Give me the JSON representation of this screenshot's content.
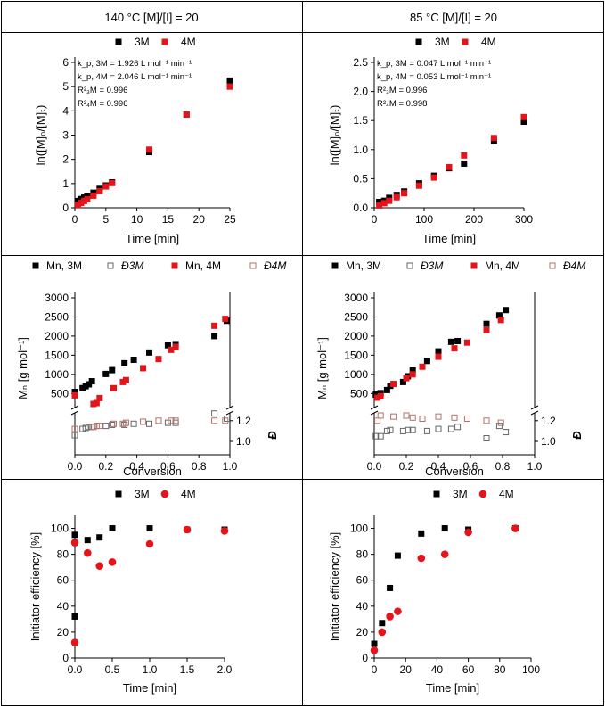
{
  "headers": [
    "140 °C [M]/[I] = 20",
    "85 °C [M]/[I] = 20"
  ],
  "colors": {
    "s3M": "#000000",
    "s4M": "#e3151a",
    "disp4M": "#b0706a",
    "disp3M": "#666666"
  },
  "chart_data": [
    {
      "id": "kin140",
      "type": "scatter",
      "xlabel": "Time [min]",
      "ylabel": "ln([M]₀/[M]ₜ)",
      "xlim": [
        0,
        25
      ],
      "xticks": [
        0,
        5,
        10,
        15,
        20,
        25
      ],
      "ylim": [
        0,
        6
      ],
      "yticks": [
        0,
        1,
        2,
        3,
        4,
        5,
        6
      ],
      "legend": [
        {
          "name": "3M"
        },
        {
          "name": "4M"
        }
      ],
      "annotations": [
        "k_p, 3M = 1.926 L mol⁻¹ min⁻¹",
        "k_p, 4M = 2.046 L mol⁻¹ min⁻¹",
        "R²₃M = 0.996",
        "R²₄M = 0.996"
      ],
      "series": [
        {
          "name": "3M",
          "x": [
            0.5,
            1,
            1.5,
            2,
            3,
            4,
            5,
            6,
            12,
            18,
            25
          ],
          "y": [
            0.28,
            0.36,
            0.42,
            0.47,
            0.62,
            0.78,
            0.92,
            1.05,
            2.3,
            3.85,
            5.25
          ]
        },
        {
          "name": "4M",
          "x": [
            0.5,
            1,
            1.5,
            2,
            3,
            4,
            5,
            6,
            12,
            18,
            25
          ],
          "y": [
            0.12,
            0.2,
            0.28,
            0.35,
            0.5,
            0.68,
            0.88,
            1.02,
            2.4,
            3.85,
            5.0
          ]
        }
      ]
    },
    {
      "id": "kin85",
      "type": "scatter",
      "xlabel": "Time [min]",
      "ylabel": "ln([M]₀/[M]ₜ)",
      "xlim": [
        0,
        300
      ],
      "xticks": [
        0,
        100,
        200,
        300
      ],
      "ylim": [
        0,
        2.5
      ],
      "yticks": [
        0.0,
        0.5,
        1.0,
        1.5,
        2.0,
        2.5
      ],
      "legend": [
        {
          "name": "3M"
        },
        {
          "name": "4M"
        }
      ],
      "annotations": [
        "k_p, 3M = 0.047 L mol⁻¹ min⁻¹",
        "k_p, 4M = 0.053 L mol⁻¹ min⁻¹",
        "R²₃M = 0.996",
        "R²₄M = 0.998"
      ],
      "series": [
        {
          "name": "3M",
          "x": [
            10,
            20,
            30,
            45,
            60,
            90,
            120,
            150,
            180,
            240,
            300
          ],
          "y": [
            0.1,
            0.12,
            0.17,
            0.22,
            0.28,
            0.42,
            0.55,
            0.68,
            0.76,
            1.15,
            1.48
          ]
        },
        {
          "name": "4M",
          "x": [
            10,
            20,
            30,
            45,
            60,
            90,
            120,
            150,
            180,
            240,
            300
          ],
          "y": [
            0.04,
            0.08,
            0.12,
            0.18,
            0.25,
            0.38,
            0.52,
            0.7,
            0.9,
            1.2,
            1.56
          ]
        }
      ]
    },
    {
      "id": "mn140",
      "type": "scatter",
      "xlabel": "Conversion",
      "ylabel": "Mₙ [g mol⁻¹]",
      "y2label": "Đ",
      "xlim": [
        0,
        1
      ],
      "xticks": [
        0.0,
        0.2,
        0.4,
        0.6,
        0.8,
        1.0
      ],
      "ylim": [
        250,
        3000
      ],
      "yticks": [
        500,
        1000,
        1500,
        2000,
        2500,
        3000
      ],
      "y2lim": [
        1.0,
        1.4
      ],
      "y2ticks": [
        1.0,
        1.2
      ],
      "legend": [
        {
          "name": "Mn, 3M"
        },
        {
          "name": "Đ3M"
        },
        {
          "name": "Mn, 4M"
        },
        {
          "name": "Đ4M"
        }
      ],
      "series": [
        {
          "name": "Mn, 3M",
          "x": [
            0.0,
            0.05,
            0.07,
            0.09,
            0.11,
            0.2,
            0.24,
            0.32,
            0.38,
            0.48,
            0.6,
            0.65,
            0.9,
            0.98
          ],
          "y": [
            540,
            640,
            690,
            740,
            820,
            1010,
            1110,
            1290,
            1380,
            1570,
            1760,
            1790,
            2000,
            2400
          ]
        },
        {
          "name": "Mn, 4M",
          "x": [
            0.0,
            0.12,
            0.14,
            0.16,
            0.25,
            0.31,
            0.33,
            0.44,
            0.54,
            0.62,
            0.65,
            0.9,
            0.97
          ],
          "y": [
            450,
            200,
            250,
            380,
            640,
            800,
            850,
            1160,
            1400,
            1640,
            1720,
            2270,
            2450
          ]
        },
        {
          "name": "Đ3M",
          "x": [
            0.0,
            0.05,
            0.07,
            0.09,
            0.11,
            0.2,
            0.24,
            0.32,
            0.38,
            0.48,
            0.6,
            0.65,
            0.9,
            0.98
          ],
          "y": [
            1.06,
            1.12,
            1.13,
            1.14,
            1.14,
            1.15,
            1.16,
            1.16,
            1.17,
            1.17,
            1.18,
            1.18,
            1.27,
            1.22
          ]
        },
        {
          "name": "Đ4M",
          "x": [
            0.0,
            0.12,
            0.14,
            0.16,
            0.25,
            0.31,
            0.33,
            0.44,
            0.54,
            0.62,
            0.65,
            0.9,
            0.97
          ],
          "y": [
            1.12,
            1.14,
            1.15,
            1.15,
            1.17,
            1.17,
            1.18,
            1.19,
            1.2,
            1.2,
            1.2,
            1.2,
            1.2
          ]
        }
      ]
    },
    {
      "id": "mn85",
      "type": "scatter",
      "xlabel": "Conversion",
      "ylabel": "Mₙ [g mol⁻¹]",
      "y2label": "Đ",
      "xlim": [
        0,
        1
      ],
      "xticks": [
        0.0,
        0.2,
        0.4,
        0.6,
        0.8,
        1.0
      ],
      "ylim": [
        250,
        3000
      ],
      "yticks": [
        500,
        1000,
        1500,
        2000,
        2500,
        3000
      ],
      "y2lim": [
        1.0,
        1.4
      ],
      "y2ticks": [
        1.0,
        1.2
      ],
      "legend": [
        {
          "name": "Mn, 3M"
        },
        {
          "name": "Đ3M"
        },
        {
          "name": "Mn, 4M"
        },
        {
          "name": "Đ4M"
        }
      ],
      "series": [
        {
          "name": "Mn, 3M",
          "x": [
            0.01,
            0.04,
            0.08,
            0.1,
            0.18,
            0.21,
            0.24,
            0.33,
            0.4,
            0.48,
            0.52,
            0.7,
            0.78,
            0.82
          ],
          "y": [
            470,
            510,
            590,
            700,
            800,
            950,
            1100,
            1350,
            1600,
            1850,
            1870,
            2320,
            2540,
            2680
          ]
        },
        {
          "name": "Mn, 4M",
          "x": [
            0.02,
            0.04,
            0.12,
            0.2,
            0.24,
            0.3,
            0.4,
            0.5,
            0.58,
            0.7,
            0.79
          ],
          "y": [
            390,
            430,
            750,
            900,
            1000,
            1200,
            1460,
            1680,
            1830,
            2150,
            2420
          ]
        },
        {
          "name": "Đ3M",
          "x": [
            0.01,
            0.04,
            0.08,
            0.1,
            0.18,
            0.21,
            0.24,
            0.33,
            0.4,
            0.48,
            0.52,
            0.7,
            0.78,
            0.82
          ],
          "y": [
            1.05,
            1.05,
            1.1,
            1.11,
            1.1,
            1.11,
            1.11,
            1.1,
            1.12,
            1.12,
            1.14,
            1.03,
            1.15,
            1.09
          ]
        },
        {
          "name": "Đ4M",
          "x": [
            0.02,
            0.04,
            0.12,
            0.2,
            0.24,
            0.3,
            0.4,
            0.5,
            0.58,
            0.7,
            0.79
          ],
          "y": [
            1.2,
            1.25,
            1.24,
            1.25,
            1.23,
            1.22,
            1.24,
            1.23,
            1.22,
            1.2,
            1.18
          ]
        }
      ]
    },
    {
      "id": "eff140",
      "type": "scatter",
      "xlabel": "Time [min]",
      "ylabel": "Initiator efficiency [%]",
      "xlim": [
        0,
        2
      ],
      "xticks": [
        0.0,
        0.5,
        1.0,
        1.5,
        2.0
      ],
      "ylim": [
        0,
        110
      ],
      "yticks": [
        0,
        20,
        40,
        60,
        80,
        100
      ],
      "legend": [
        {
          "name": "3M"
        },
        {
          "name": "4M"
        }
      ],
      "series": [
        {
          "name": "3M",
          "x": [
            0.0,
            0.0,
            0.17,
            0.33,
            0.5,
            1.0,
            1.5,
            2.0
          ],
          "y": [
            32,
            95,
            91,
            93,
            100,
            100,
            99,
            99
          ]
        },
        {
          "name": "4M",
          "x": [
            0.0,
            0.0,
            0.17,
            0.33,
            0.5,
            1.0,
            1.5,
            2.0
          ],
          "y": [
            12,
            89,
            81,
            71,
            74,
            88,
            99,
            98
          ]
        }
      ]
    },
    {
      "id": "eff85",
      "type": "scatter",
      "xlabel": "Time [min]",
      "ylabel": "Initiator efficiency [%]",
      "xlim": [
        0,
        100
      ],
      "xticks": [
        0,
        20,
        40,
        60,
        80,
        100
      ],
      "ylim": [
        0,
        110
      ],
      "yticks": [
        0,
        20,
        40,
        60,
        80,
        100
      ],
      "legend": [
        {
          "name": "3M"
        },
        {
          "name": "4M"
        }
      ],
      "series": [
        {
          "name": "3M",
          "x": [
            0,
            5,
            10,
            15,
            30,
            45,
            60,
            90
          ],
          "y": [
            11,
            27,
            54,
            79,
            96,
            100,
            99,
            100
          ]
        },
        {
          "name": "4M",
          "x": [
            0,
            5,
            10,
            15,
            30,
            45,
            60,
            90
          ],
          "y": [
            6,
            20,
            32,
            36,
            77,
            80,
            97,
            100
          ]
        }
      ]
    }
  ]
}
